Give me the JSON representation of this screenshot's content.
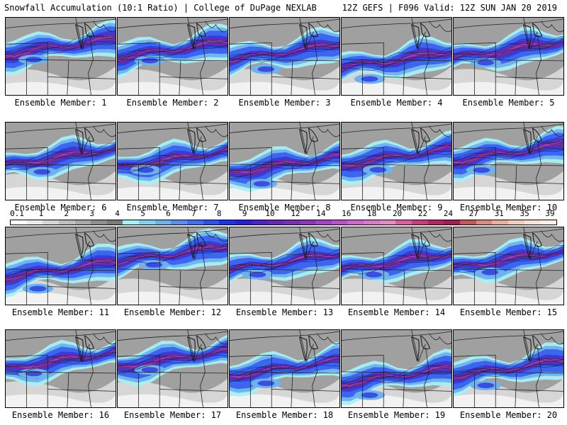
{
  "header": {
    "title_left": "Snowfall Accumulation (10:1 Ratio) | College of DuPage NEXLAB",
    "title_right": "12Z GEFS | F096 Valid: 12Z SUN JAN 20 2019"
  },
  "panels": [
    {
      "label": "Ensemble Member: 1",
      "band_lat": 0.38,
      "intensity": 0.85,
      "south_lobe": 0.6
    },
    {
      "label": "Ensemble Member: 2",
      "band_lat": 0.42,
      "intensity": 0.8,
      "south_lobe": 0.5
    },
    {
      "label": "Ensemble Member: 3",
      "band_lat": 0.45,
      "intensity": 0.65,
      "south_lobe": 0.8
    },
    {
      "label": "Ensemble Member: 4",
      "band_lat": 0.55,
      "intensity": 0.75,
      "south_lobe": 0.9
    },
    {
      "label": "Ensemble Member: 5",
      "band_lat": 0.42,
      "intensity": 0.85,
      "south_lobe": 0.6
    },
    {
      "label": "Ensemble Member: 6",
      "band_lat": 0.45,
      "intensity": 0.8,
      "south_lobe": 0.7
    },
    {
      "label": "Ensemble Member: 7",
      "band_lat": 0.48,
      "intensity": 0.75,
      "south_lobe": 0.5
    },
    {
      "label": "Ensemble Member: 8",
      "band_lat": 0.55,
      "intensity": 0.8,
      "south_lobe": 0.9
    },
    {
      "label": "Ensemble Member: 9",
      "band_lat": 0.45,
      "intensity": 0.75,
      "south_lobe": 0.6
    },
    {
      "label": "Ensemble Member: 10",
      "band_lat": 0.4,
      "intensity": 0.8,
      "south_lobe": 0.8
    },
    {
      "label": "Ensemble Member: 11",
      "band_lat": 0.55,
      "intensity": 0.8,
      "south_lobe": 0.9
    },
    {
      "label": "Ensemble Member: 12",
      "band_lat": 0.35,
      "intensity": 0.7,
      "south_lobe": 0.5
    },
    {
      "label": "Ensemble Member: 13",
      "band_lat": 0.45,
      "intensity": 0.6,
      "south_lobe": 0.6
    },
    {
      "label": "Ensemble Member: 14",
      "band_lat": 0.45,
      "intensity": 0.8,
      "south_lobe": 0.6
    },
    {
      "label": "Ensemble Member: 15",
      "band_lat": 0.42,
      "intensity": 0.75,
      "south_lobe": 0.6
    },
    {
      "label": "Ensemble Member: 16",
      "band_lat": 0.4,
      "intensity": 0.8,
      "south_lobe": 0.6
    },
    {
      "label": "Ensemble Member: 17",
      "band_lat": 0.38,
      "intensity": 0.8,
      "south_lobe": 0.5
    },
    {
      "label": "Ensemble Member: 18",
      "band_lat": 0.5,
      "intensity": 0.6,
      "south_lobe": 0.7
    },
    {
      "label": "Ensemble Member: 19",
      "band_lat": 0.6,
      "intensity": 0.75,
      "south_lobe": 0.9
    },
    {
      "label": "Ensemble Member: 20",
      "band_lat": 0.5,
      "intensity": 0.7,
      "south_lobe": 0.8
    }
  ],
  "colorbar": {
    "labels": [
      "0.1",
      "1",
      "2",
      "3",
      "4",
      "5",
      "6",
      "7",
      "8",
      "9",
      "10",
      "12",
      "14",
      "16",
      "18",
      "20",
      "22",
      "24",
      "27",
      "31",
      "35",
      "39"
    ],
    "colors": [
      "#ffffff",
      "#eaeaea",
      "#d4d4d4",
      "#bebebe",
      "#a8a8a8",
      "#8e8e8e",
      "#7a7a7a",
      "#a9f0f5",
      "#7fd1ee",
      "#6fb1ec",
      "#5a8ff0",
      "#4270f2",
      "#2f52ee",
      "#1f33e8",
      "#2a1fd8",
      "#4b23c8",
      "#6428b4",
      "#7a2fb0",
      "#8f35b8",
      "#a443c2",
      "#b852c8",
      "#cc65cc",
      "#d879c8",
      "#e08cc0",
      "#d85fa0",
      "#c83c80",
      "#b42664",
      "#a0204f",
      "#c05a5a",
      "#d88a80",
      "#e8b0a0",
      "#f2cdbd",
      "#f8e2d6",
      "#fcefe7"
    ]
  }
}
